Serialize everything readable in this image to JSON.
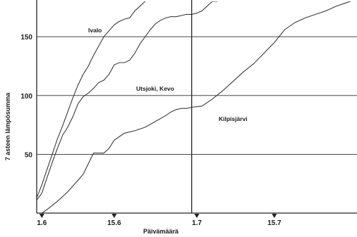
{
  "chart_data": {
    "type": "line",
    "xlabel": "Päivämäärä",
    "ylabel": "7 asteen lämpösumma",
    "x_ticks": [
      "1.6",
      "15.6",
      "1.7",
      "15.7"
    ],
    "y_ticks": [
      50,
      100,
      150
    ],
    "xlim": [
      0,
      62
    ],
    "ylim": [
      0,
      180
    ],
    "grid": "horizontal",
    "marker_line_x": 30,
    "series": [
      {
        "name": "Ivalo",
        "x": [
          0,
          1,
          2,
          3,
          4,
          5,
          6,
          7,
          8,
          9,
          10,
          11,
          12,
          13,
          14,
          15,
          16,
          17,
          18,
          19,
          20,
          21
        ],
        "y": [
          13,
          24,
          37,
          50,
          63,
          74,
          86,
          98,
          109,
          118,
          125,
          134,
          142,
          150,
          155,
          160,
          163,
          165,
          166,
          172,
          176,
          180
        ]
      },
      {
        "name": "Utsjoki, Kevo",
        "x": [
          0,
          1,
          2,
          3,
          4,
          5,
          6,
          7,
          8,
          9,
          10,
          11,
          12,
          13,
          14,
          15,
          16,
          17,
          18,
          19,
          20,
          21,
          22,
          23,
          24,
          25,
          26,
          27,
          28,
          29,
          30,
          31,
          32,
          33,
          34,
          35
        ],
        "y": [
          11,
          17,
          30,
          43,
          55,
          66,
          73,
          82,
          93,
          99,
          102,
          106,
          111,
          113,
          118,
          126,
          128,
          128,
          130,
          136,
          144,
          150,
          156,
          161,
          164,
          166,
          167,
          167,
          168,
          169,
          169,
          170,
          172,
          176,
          180,
          180
        ]
      },
      {
        "name": "Kilpisjärvi",
        "x": [
          1,
          2,
          4,
          6,
          8,
          9,
          10,
          11,
          12,
          13,
          14,
          15,
          17,
          19,
          21,
          23,
          25,
          26,
          27,
          28,
          29,
          30,
          32,
          34,
          36,
          38,
          40,
          42,
          44,
          46,
          48,
          50,
          52,
          54,
          56,
          58,
          60,
          62
        ],
        "y": [
          0,
          3,
          10,
          18,
          28,
          33,
          42,
          51,
          51,
          51,
          55,
          62,
          68,
          70,
          73,
          78,
          83,
          86,
          88,
          89,
          89,
          90,
          91,
          97,
          104,
          112,
          120,
          127,
          136,
          145,
          156,
          162,
          166,
          169,
          172,
          176,
          179,
          182
        ]
      }
    ],
    "annotations": [
      {
        "text": "Ivalo",
        "series": "Ivalo"
      },
      {
        "text": "Utsjoki, Kevo",
        "series": "Utsjoki, Kevo"
      },
      {
        "text": "Kilpisjärvi",
        "series": "Kilpisjärvi"
      }
    ]
  }
}
